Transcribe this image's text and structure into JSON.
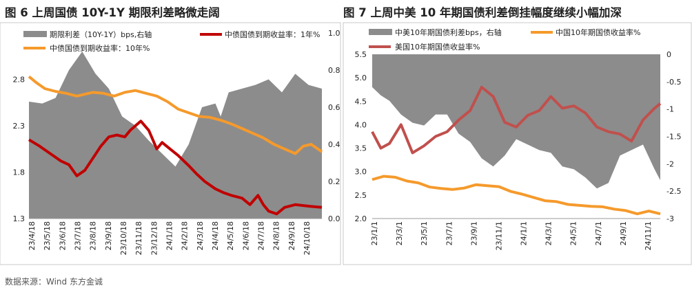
{
  "source": "数据来源：Wind 东方金诚",
  "chart_data": [
    {
      "title": "图 6  上周国债 10Y-1Y 期限利差略微走阔",
      "type": "area+line",
      "legend_position": "top",
      "x_ticks": [
        "23/4/18",
        "23/5/18",
        "23/6/18",
        "23/7/18",
        "23/8/18",
        "23/9/18",
        "23/10/18",
        "23/11/18",
        "23/12/18",
        "24/1/18",
        "24/2/18",
        "24/3/18",
        "24/4/18",
        "24/5/18",
        "24/6/18",
        "24/7/18",
        "24/8/18",
        "24/9/18",
        "24/10/18"
      ],
      "y_left": {
        "min": 1.3,
        "max": 3.3,
        "ticks": [
          "1.3",
          "1.8",
          "2.3",
          "2.8"
        ]
      },
      "y_right": {
        "min": 0.0,
        "max": 1.0,
        "ticks": [
          "0.0",
          "0.2",
          "0.4",
          "0.6",
          "0.8",
          "1.0"
        ]
      },
      "series": [
        {
          "name": "期限利差（10Y-1Y）bps,右轴",
          "type": "area",
          "axis": "right",
          "color": "#8c8c8c",
          "x": [
            0,
            5,
            10,
            15,
            20,
            25,
            30,
            35,
            40,
            45,
            50,
            55,
            60,
            65,
            70,
            72,
            75,
            80,
            85,
            90,
            95,
            100,
            105,
            110
          ],
          "values": [
            0.63,
            0.62,
            0.65,
            0.8,
            0.9,
            0.78,
            0.7,
            0.55,
            0.5,
            0.42,
            0.35,
            0.28,
            0.4,
            0.6,
            0.62,
            0.55,
            0.68,
            0.7,
            0.72,
            0.75,
            0.68,
            0.78,
            0.72,
            0.7
          ]
        },
        {
          "name": "中债国债到期收益率：1年%",
          "type": "line",
          "axis": "left",
          "color": "#c00000",
          "x": [
            0,
            4,
            8,
            12,
            15,
            18,
            21,
            24,
            27,
            30,
            33,
            36,
            38,
            40,
            42,
            45,
            48,
            50,
            53,
            56,
            60,
            63,
            66,
            70,
            73,
            76,
            80,
            83,
            86,
            88,
            90,
            93,
            96,
            100,
            103,
            106,
            110
          ],
          "values": [
            2.15,
            2.08,
            2.0,
            1.92,
            1.88,
            1.76,
            1.82,
            1.95,
            2.08,
            2.18,
            2.2,
            2.18,
            2.25,
            2.3,
            2.35,
            2.25,
            2.05,
            2.12,
            2.05,
            1.98,
            1.87,
            1.78,
            1.7,
            1.62,
            1.58,
            1.55,
            1.52,
            1.45,
            1.55,
            1.45,
            1.38,
            1.35,
            1.42,
            1.45,
            1.44,
            1.43,
            1.42
          ]
        },
        {
          "name": "中债国债到期收益率：10年%",
          "type": "line",
          "axis": "left",
          "color": "#f59a2c",
          "x": [
            0,
            3,
            6,
            10,
            14,
            18,
            21,
            24,
            28,
            32,
            36,
            40,
            44,
            48,
            52,
            56,
            60,
            64,
            68,
            72,
            76,
            80,
            84,
            88,
            92,
            96,
            100,
            103,
            106,
            110
          ],
          "values": [
            2.83,
            2.76,
            2.7,
            2.67,
            2.65,
            2.62,
            2.64,
            2.66,
            2.65,
            2.62,
            2.66,
            2.68,
            2.65,
            2.62,
            2.56,
            2.48,
            2.44,
            2.4,
            2.39,
            2.36,
            2.32,
            2.27,
            2.22,
            2.17,
            2.1,
            2.05,
            2.0,
            2.08,
            2.1,
            2.02
          ]
        }
      ]
    },
    {
      "title": "图 7  上周中美 10 年期国债利差倒挂幅度继续小幅加深",
      "type": "area+line",
      "legend_position": "top",
      "x_ticks": [
        "23/1/1",
        "23/3/1",
        "23/5/1",
        "23/7/1",
        "23/9/1",
        "23/11/1",
        "24/1/1",
        "24/3/1",
        "24/5/1",
        "24/7/1",
        "24/9/1",
        "24/11/1"
      ],
      "y_left": {
        "min": 2.0,
        "max": 5.5,
        "ticks": [
          "2.0",
          "2.5",
          "3.0",
          "3.5",
          "4.0",
          "4.5",
          "5.0",
          "5.5"
        ]
      },
      "y_right": {
        "min": -3.0,
        "max": 0.0,
        "ticks": [
          "0",
          "-0.5",
          "-1",
          "-1.5",
          "-2",
          "-2.5",
          "-3"
        ]
      },
      "series": [
        {
          "name": "中美10年期国债利差bps，右轴",
          "type": "area",
          "axis": "right",
          "color": "#8c8c8c",
          "x": [
            0,
            3,
            6,
            10,
            14,
            18,
            22,
            26,
            30,
            34,
            38,
            42,
            46,
            50,
            54,
            58,
            62,
            66,
            70,
            74,
            78,
            82,
            86,
            90,
            94,
            98,
            100
          ],
          "values": [
            -0.6,
            -0.75,
            -0.85,
            -1.1,
            -1.25,
            -1.3,
            -1.1,
            -1.1,
            -1.45,
            -1.6,
            -1.9,
            -2.05,
            -1.85,
            -1.55,
            -1.65,
            -1.75,
            -1.8,
            -2.05,
            -2.1,
            -2.25,
            -2.45,
            -2.35,
            -1.85,
            -1.75,
            -1.65,
            -2.1,
            -2.3
          ]
        },
        {
          "name": "中国10年期国债收益率%",
          "type": "line",
          "axis": "left",
          "color": "#f59a2c",
          "x": [
            0,
            4,
            8,
            12,
            16,
            20,
            24,
            28,
            32,
            36,
            40,
            44,
            48,
            52,
            56,
            60,
            64,
            68,
            72,
            76,
            80,
            84,
            88,
            92,
            96,
            100
          ],
          "values": [
            2.83,
            2.9,
            2.88,
            2.8,
            2.76,
            2.67,
            2.64,
            2.62,
            2.65,
            2.72,
            2.7,
            2.68,
            2.58,
            2.52,
            2.45,
            2.38,
            2.36,
            2.3,
            2.28,
            2.26,
            2.25,
            2.2,
            2.17,
            2.1,
            2.16,
            2.1
          ]
        },
        {
          "name": "美国10年期国债收益率%",
          "type": "line",
          "axis": "left",
          "color": "#c0504d",
          "x": [
            0,
            3,
            6,
            10,
            14,
            18,
            22,
            26,
            30,
            34,
            38,
            42,
            46,
            50,
            54,
            58,
            62,
            66,
            70,
            74,
            78,
            82,
            86,
            90,
            94,
            98,
            100
          ],
          "values": [
            3.85,
            3.5,
            3.6,
            4.0,
            3.4,
            3.55,
            3.75,
            3.85,
            4.1,
            4.3,
            4.8,
            4.6,
            4.05,
            3.95,
            4.2,
            4.3,
            4.6,
            4.35,
            4.4,
            4.25,
            3.95,
            3.85,
            3.8,
            3.65,
            4.1,
            4.35,
            4.45
          ]
        }
      ]
    }
  ]
}
